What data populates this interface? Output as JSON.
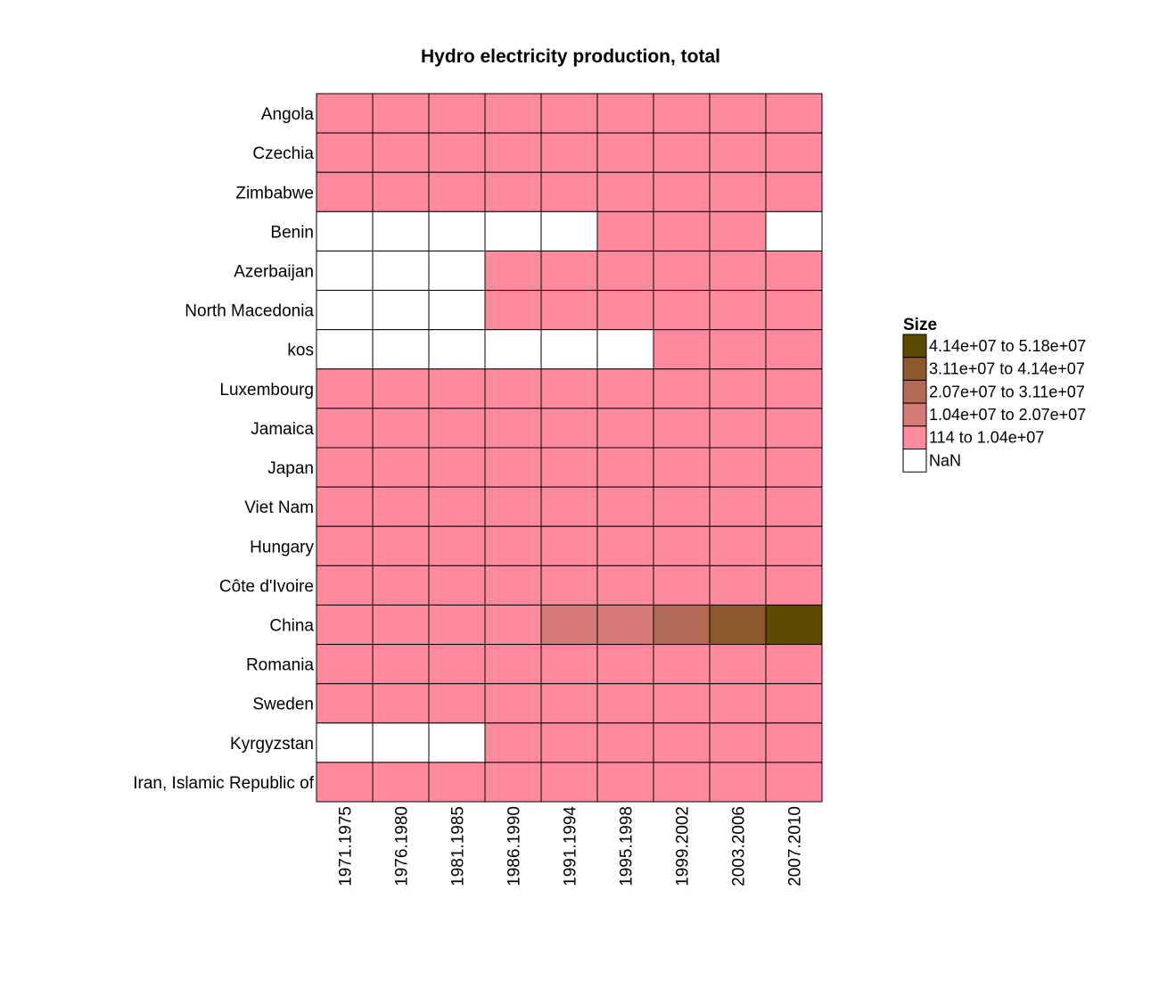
{
  "chart_data": {
    "type": "heatmap",
    "title": "Hydro electricity production, total",
    "rows": [
      "Angola",
      "Czechia",
      "Zimbabwe",
      "Benin",
      "Azerbaijan",
      "North Macedonia",
      "kos",
      "Luxembourg",
      "Jamaica",
      "Japan",
      "Viet Nam",
      "Hungary",
      "Côte d'Ivoire",
      "China",
      "Romania",
      "Sweden",
      "Kyrgyzstan",
      "Iran, Islamic Republic of"
    ],
    "columns": [
      "1971.1975",
      "1976.1980",
      "1981.1985",
      "1986.1990",
      "1991.1994",
      "1995.1998",
      "1999.2002",
      "2003.2006",
      "2007.2010"
    ],
    "bins": [
      {
        "label": "4.14e+07 to 5.18e+07",
        "color": "#5c4a00"
      },
      {
        "label": "3.11e+07 to 4.14e+07",
        "color": "#8a5a2c"
      },
      {
        "label": "2.07e+07 to 3.11e+07",
        "color": "#b06a55"
      },
      {
        "label": "1.04e+07 to 2.07e+07",
        "color": "#d67b78"
      },
      {
        "label": "114 to 1.04e+07",
        "color": "#ff8a9e"
      },
      {
        "label": "NaN",
        "color": "#ffffff"
      }
    ],
    "cells": [
      [
        4,
        4,
        4,
        4,
        4,
        4,
        4,
        4,
        4
      ],
      [
        4,
        4,
        4,
        4,
        4,
        4,
        4,
        4,
        4
      ],
      [
        4,
        4,
        4,
        4,
        4,
        4,
        4,
        4,
        4
      ],
      [
        5,
        5,
        5,
        5,
        5,
        4,
        4,
        4,
        5
      ],
      [
        5,
        5,
        5,
        4,
        4,
        4,
        4,
        4,
        4
      ],
      [
        5,
        5,
        5,
        4,
        4,
        4,
        4,
        4,
        4
      ],
      [
        5,
        5,
        5,
        5,
        5,
        5,
        4,
        4,
        4
      ],
      [
        4,
        4,
        4,
        4,
        4,
        4,
        4,
        4,
        4
      ],
      [
        4,
        4,
        4,
        4,
        4,
        4,
        4,
        4,
        4
      ],
      [
        4,
        4,
        4,
        4,
        4,
        4,
        4,
        4,
        4
      ],
      [
        4,
        4,
        4,
        4,
        4,
        4,
        4,
        4,
        4
      ],
      [
        4,
        4,
        4,
        4,
        4,
        4,
        4,
        4,
        4
      ],
      [
        4,
        4,
        4,
        4,
        4,
        4,
        4,
        4,
        4
      ],
      [
        4,
        4,
        4,
        4,
        3,
        3,
        2,
        1,
        0
      ],
      [
        4,
        4,
        4,
        4,
        4,
        4,
        4,
        4,
        4
      ],
      [
        4,
        4,
        4,
        4,
        4,
        4,
        4,
        4,
        4
      ],
      [
        5,
        5,
        5,
        4,
        4,
        4,
        4,
        4,
        4
      ],
      [
        4,
        4,
        4,
        4,
        4,
        4,
        4,
        4,
        4
      ]
    ],
    "legend": {
      "title": "Size",
      "position": "right"
    }
  }
}
